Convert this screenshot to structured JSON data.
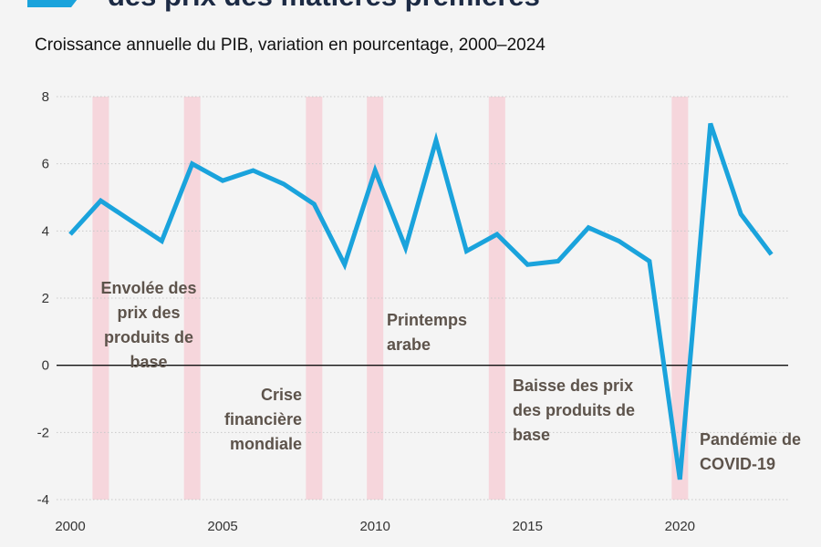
{
  "header": {
    "title": "des prix des matières premières",
    "subtitle": "Croissance annuelle du PIB, variation en pourcentage, 2000–2024"
  },
  "colors": {
    "line": "#1aa3dc",
    "shade": "#f6d6dc",
    "grid": "#c9c9c9",
    "annotation": "#5d534b",
    "title": "#1c2a44",
    "icon": "#1aa3dc"
  },
  "chart_data": {
    "type": "line",
    "x": [
      2000,
      2001,
      2002,
      2003,
      2004,
      2005,
      2006,
      2007,
      2008,
      2009,
      2010,
      2011,
      2012,
      2013,
      2014,
      2015,
      2016,
      2017,
      2018,
      2019,
      2020,
      2021,
      2022,
      2023
    ],
    "series": [
      {
        "values": [
          3.9,
          4.9,
          4.3,
          3.7,
          6.0,
          5.5,
          5.8,
          5.4,
          4.8,
          3.0,
          5.8,
          3.5,
          6.7,
          3.4,
          3.9,
          3.0,
          3.1,
          4.1,
          3.7,
          3.1,
          -3.4,
          7.2,
          4.5,
          3.3
        ]
      }
    ],
    "xlim": [
      2000,
      2024
    ],
    "ylim": [
      -4,
      8
    ],
    "xticks": [
      "2000",
      "2005",
      "2010",
      "2015",
      "2020"
    ],
    "yticks": [
      "-4",
      "-2",
      "0",
      "2",
      "4",
      "6",
      "8"
    ],
    "grid": "horizontal dotted",
    "shaded_years": [
      2001,
      2004,
      2008,
      2010,
      2014,
      2020
    ],
    "annotations": [
      {
        "year": 2001,
        "lines": [
          "Envolée des",
          "prix des",
          "produits de",
          "base"
        ]
      },
      {
        "year": 2008,
        "lines": [
          "Crise",
          "financière",
          "mondiale"
        ]
      },
      {
        "year": 2010,
        "lines": [
          "Printemps",
          "arabe"
        ]
      },
      {
        "year": 2014,
        "lines": [
          "Baisse des prix",
          "des produits de",
          "base"
        ]
      },
      {
        "year": 2020,
        "lines": [
          "Pandémie de",
          "COVID-19"
        ]
      }
    ]
  }
}
